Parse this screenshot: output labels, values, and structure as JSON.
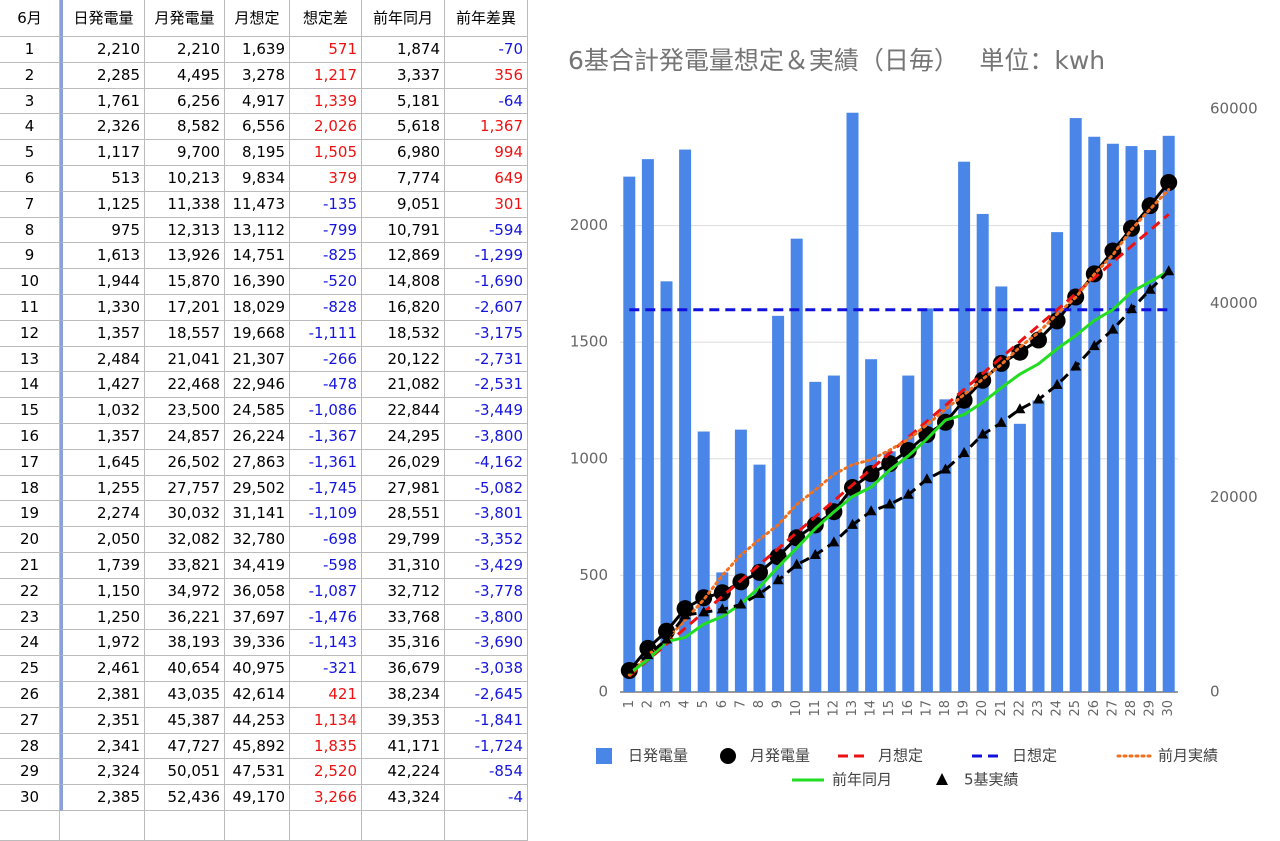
{
  "table": {
    "header": [
      "6月",
      "日発電量",
      "月発電量",
      "月想定",
      "想定差",
      "前年同月",
      "前年差異"
    ],
    "rows": [
      [
        "1",
        "2,210",
        "2,210",
        "1,639",
        "571",
        "1,874",
        "-70"
      ],
      [
        "2",
        "2,285",
        "4,495",
        "3,278",
        "1,217",
        "3,337",
        "356"
      ],
      [
        "3",
        "1,761",
        "6,256",
        "4,917",
        "1,339",
        "5,181",
        "-64"
      ],
      [
        "4",
        "2,326",
        "8,582",
        "6,556",
        "2,026",
        "5,618",
        "1,367"
      ],
      [
        "5",
        "1,117",
        "9,700",
        "8,195",
        "1,505",
        "6,980",
        "994"
      ],
      [
        "6",
        "513",
        "10,213",
        "9,834",
        "379",
        "7,774",
        "649"
      ],
      [
        "7",
        "1,125",
        "11,338",
        "11,473",
        "-135",
        "9,051",
        "301"
      ],
      [
        "8",
        "975",
        "12,313",
        "13,112",
        "-799",
        "10,791",
        "-594"
      ],
      [
        "9",
        "1,613",
        "13,926",
        "14,751",
        "-825",
        "12,869",
        "-1,299"
      ],
      [
        "10",
        "1,944",
        "15,870",
        "16,390",
        "-520",
        "14,808",
        "-1,690"
      ],
      [
        "11",
        "1,330",
        "17,201",
        "18,029",
        "-828",
        "16,820",
        "-2,607"
      ],
      [
        "12",
        "1,357",
        "18,557",
        "19,668",
        "-1,111",
        "18,532",
        "-3,175"
      ],
      [
        "13",
        "2,484",
        "21,041",
        "21,307",
        "-266",
        "20,122",
        "-2,731"
      ],
      [
        "14",
        "1,427",
        "22,468",
        "22,946",
        "-478",
        "21,082",
        "-2,531"
      ],
      [
        "15",
        "1,032",
        "23,500",
        "24,585",
        "-1,086",
        "22,844",
        "-3,449"
      ],
      [
        "16",
        "1,357",
        "24,857",
        "26,224",
        "-1,367",
        "24,295",
        "-3,800"
      ],
      [
        "17",
        "1,645",
        "26,502",
        "27,863",
        "-1,361",
        "26,029",
        "-4,162"
      ],
      [
        "18",
        "1,255",
        "27,757",
        "29,502",
        "-1,745",
        "27,981",
        "-5,082"
      ],
      [
        "19",
        "2,274",
        "30,032",
        "31,141",
        "-1,109",
        "28,551",
        "-3,801"
      ],
      [
        "20",
        "2,050",
        "32,082",
        "32,780",
        "-698",
        "29,799",
        "-3,352"
      ],
      [
        "21",
        "1,739",
        "33,821",
        "34,419",
        "-598",
        "31,310",
        "-3,429"
      ],
      [
        "22",
        "1,150",
        "34,972",
        "36,058",
        "-1,087",
        "32,712",
        "-3,778"
      ],
      [
        "23",
        "1,250",
        "36,221",
        "37,697",
        "-1,476",
        "33,768",
        "-3,800"
      ],
      [
        "24",
        "1,972",
        "38,193",
        "39,336",
        "-1,143",
        "35,316",
        "-3,690"
      ],
      [
        "25",
        "2,461",
        "40,654",
        "40,975",
        "-321",
        "36,679",
        "-3,038"
      ],
      [
        "26",
        "2,381",
        "43,035",
        "42,614",
        "421",
        "38,234",
        "-2,645"
      ],
      [
        "27",
        "2,351",
        "45,387",
        "44,253",
        "1,134",
        "39,353",
        "-1,841"
      ],
      [
        "28",
        "2,341",
        "47,727",
        "45,892",
        "1,835",
        "41,171",
        "-1,724"
      ],
      [
        "29",
        "2,324",
        "50,051",
        "47,531",
        "2,520",
        "42,224",
        "-854"
      ],
      [
        "30",
        "2,385",
        "52,436",
        "49,170",
        "3,266",
        "43,324",
        "-4"
      ]
    ]
  },
  "chart_data": {
    "type": "combo",
    "title": "6基合計発電量想定＆実績（日毎）　 単位：kwh",
    "categories": [
      "1",
      "2",
      "3",
      "4",
      "5",
      "6",
      "7",
      "8",
      "9",
      "10",
      "11",
      "12",
      "13",
      "14",
      "15",
      "16",
      "17",
      "18",
      "19",
      "20",
      "21",
      "22",
      "23",
      "24",
      "25",
      "26",
      "27",
      "28",
      "29",
      "30"
    ],
    "ylim": [
      0,
      2500
    ],
    "yticks": [
      0,
      500,
      1000,
      1500,
      2000
    ],
    "y2lim": [
      0,
      60000
    ],
    "y2ticks": [
      0,
      20000,
      40000,
      60000
    ],
    "grid": true,
    "series": [
      {
        "name": "日発電量",
        "type": "bar",
        "color": "#4a86e8",
        "values": [
          2210,
          2285,
          1761,
          2326,
          1117,
          513,
          1125,
          975,
          1613,
          1944,
          1330,
          1357,
          2484,
          1427,
          1032,
          1357,
          1645,
          1255,
          2274,
          2050,
          1739,
          1150,
          1250,
          1972,
          2461,
          2381,
          2351,
          2341,
          2324,
          2385
        ]
      },
      {
        "name": "月発電量",
        "type": "line",
        "color": "#000000",
        "dash": "solid",
        "marker": "circle",
        "axis": "y2",
        "values": [
          2210,
          4495,
          6256,
          8582,
          9700,
          10213,
          11338,
          12313,
          13926,
          15870,
          17201,
          18557,
          21041,
          22468,
          23500,
          24857,
          26502,
          27757,
          30032,
          32082,
          33821,
          34972,
          36221,
          38193,
          40654,
          43035,
          45387,
          47727,
          50051,
          52436
        ]
      },
      {
        "name": "月想定",
        "type": "line",
        "color": "#ee1111",
        "dash": "dashed",
        "axis": "y2",
        "values": [
          1639,
          3278,
          4917,
          6556,
          8195,
          9834,
          11473,
          13112,
          14751,
          16390,
          18029,
          19668,
          21307,
          22946,
          24585,
          26224,
          27863,
          29502,
          31141,
          32780,
          34419,
          36058,
          37697,
          39336,
          40975,
          42614,
          44253,
          45892,
          47531,
          49170
        ]
      },
      {
        "name": "日想定",
        "type": "line",
        "color": "#1111dd",
        "dash": "dashed",
        "values": [
          1639,
          1639,
          1639,
          1639,
          1639,
          1639,
          1639,
          1639,
          1639,
          1639,
          1639,
          1639,
          1639,
          1639,
          1639,
          1639,
          1639,
          1639,
          1639,
          1639,
          1639,
          1639,
          1639,
          1639,
          1639,
          1639,
          1639,
          1639,
          1639,
          1639
        ]
      },
      {
        "name": "前月実績",
        "type": "line",
        "color": "#f07020",
        "dash": "dotted",
        "axis": "y2",
        "values": [
          1750,
          3800,
          5400,
          7400,
          9500,
          12000,
          14100,
          15700,
          17200,
          19300,
          20800,
          22400,
          23400,
          23900,
          24900,
          26000,
          27500,
          29100,
          30600,
          32200,
          33700,
          35500,
          37000,
          38900,
          40600,
          43000,
          45000,
          47600,
          49700,
          51700
        ]
      },
      {
        "name": "前年同月",
        "type": "line",
        "color": "#22dd22",
        "dash": "solid",
        "axis": "y2",
        "values": [
          1874,
          3337,
          5181,
          5618,
          6980,
          7774,
          9051,
          10791,
          12869,
          14808,
          16820,
          18532,
          20122,
          21082,
          22844,
          24295,
          26029,
          27981,
          28551,
          29799,
          31310,
          32712,
          33768,
          35316,
          36679,
          38234,
          39353,
          41171,
          42224,
          43324
        ]
      },
      {
        "name": "5基実績",
        "type": "line",
        "color": "#000000",
        "dash": "dashed",
        "marker": "triangle",
        "axis": "y2",
        "values": [
          2300,
          3800,
          5400,
          7900,
          8200,
          8500,
          9000,
          10100,
          11500,
          13100,
          14100,
          15400,
          17200,
          18600,
          19300,
          20300,
          21900,
          22900,
          24600,
          26500,
          27700,
          29100,
          30100,
          31600,
          33500,
          35600,
          37300,
          39400,
          41400,
          43300
        ]
      }
    ]
  }
}
